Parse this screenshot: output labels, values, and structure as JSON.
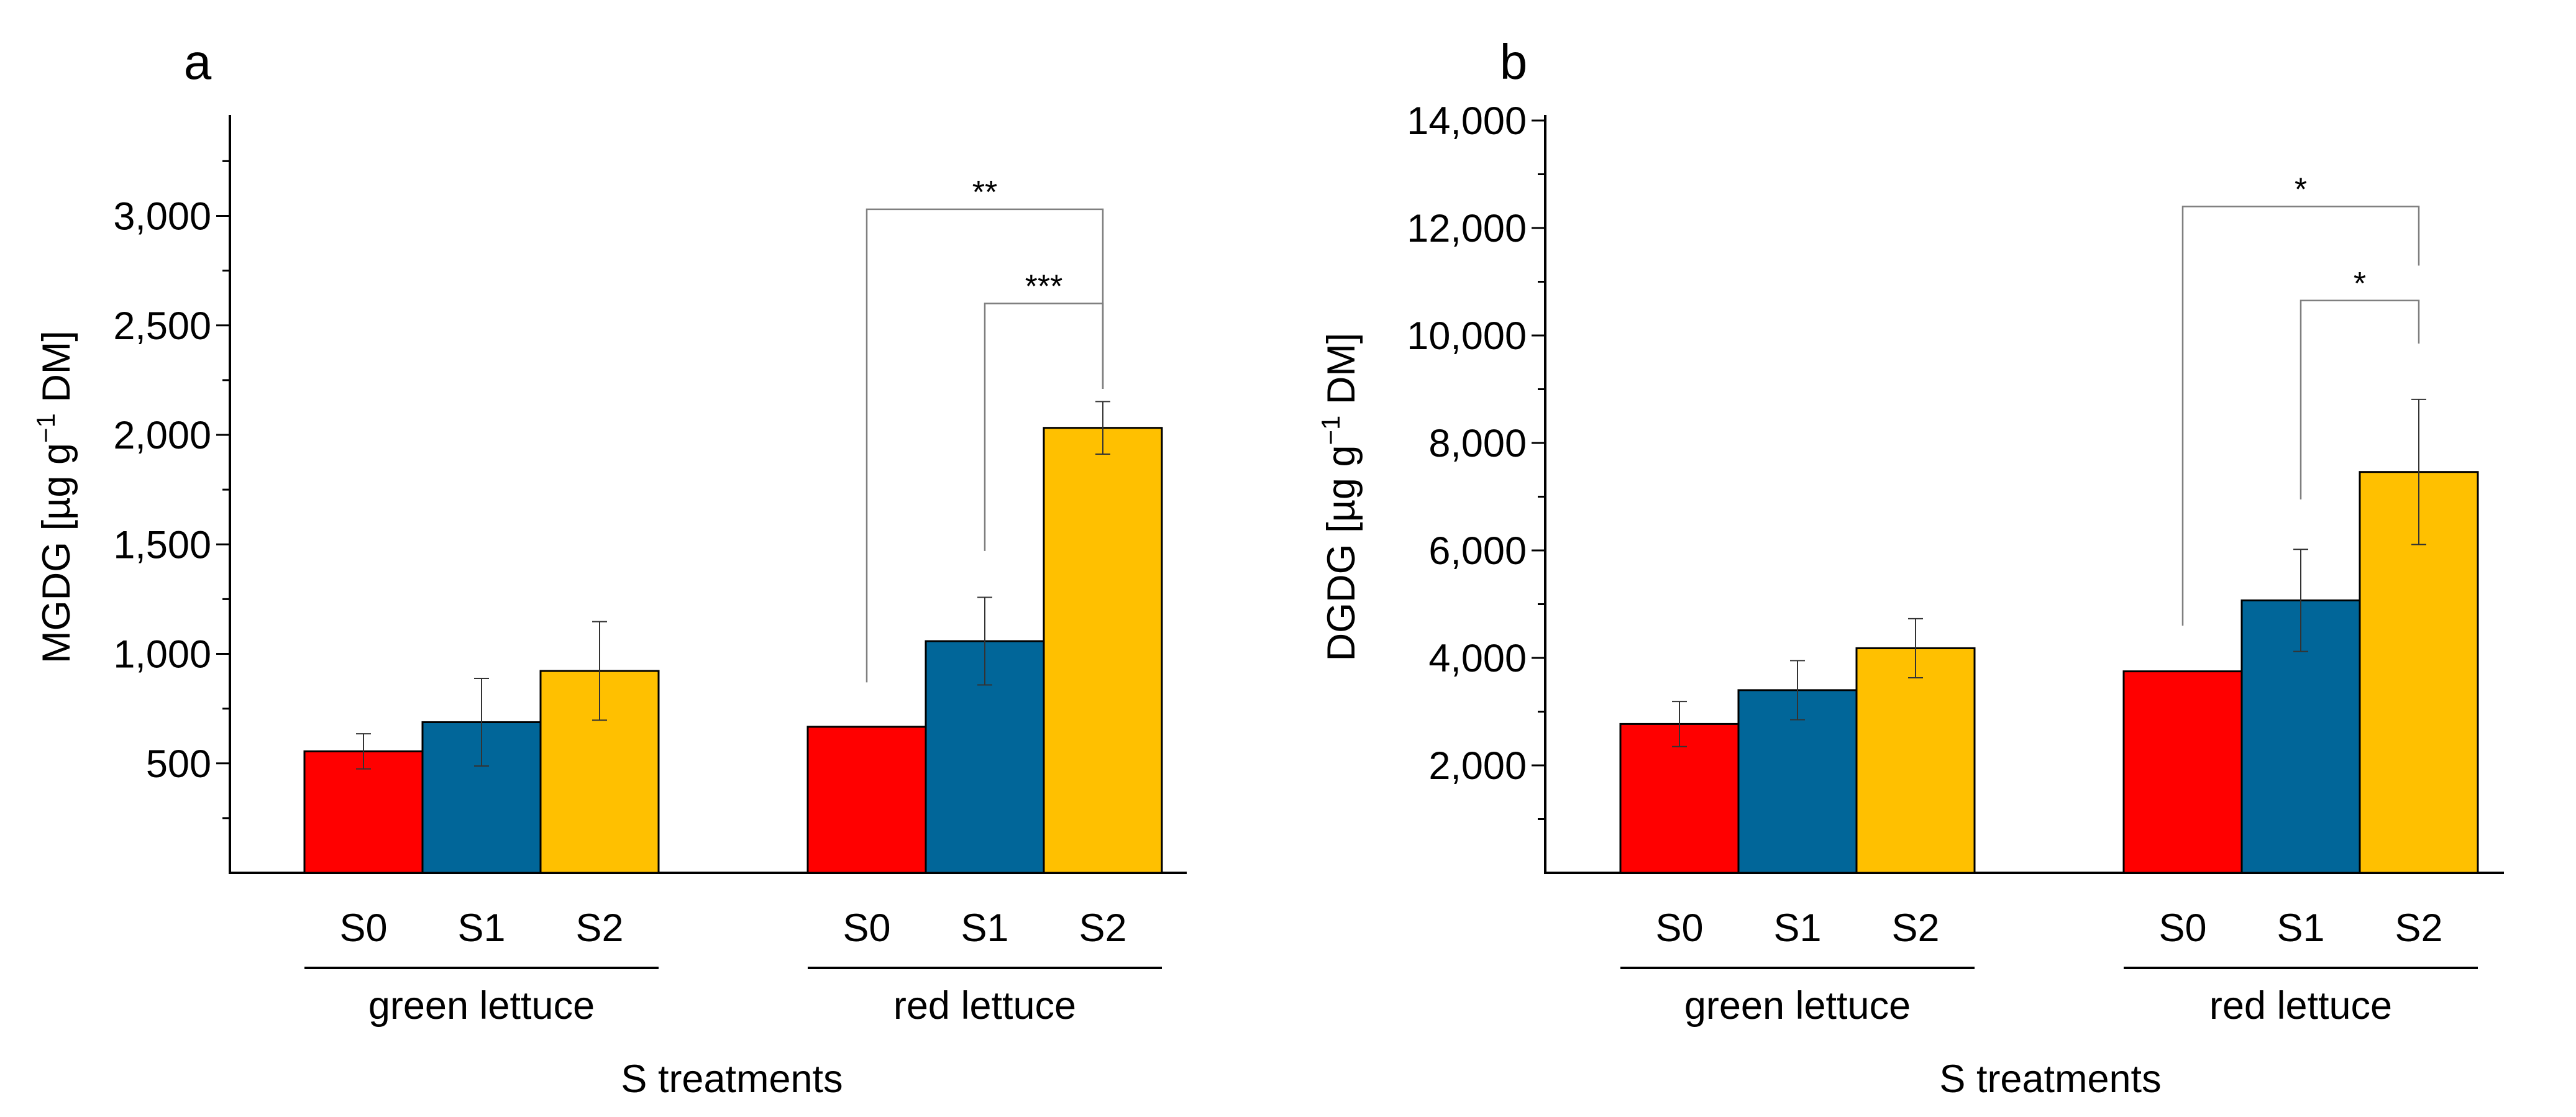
{
  "chart_data": [
    {
      "type": "bar",
      "panel_label": "a",
      "ylabel": "MGDG [µg g",
      "ylabel_sup": "−1",
      "ylabel_tail": " DM]",
      "xlabel": "S treatments",
      "ylim": [
        0,
        3400
      ],
      "yticks": [
        500,
        1000,
        1500,
        2000,
        2500,
        3000
      ],
      "ytick_labels": [
        "500",
        "1,000",
        "1,500",
        "2,000",
        "2,500",
        "3,000"
      ],
      "groups": [
        {
          "label": "green lettuce",
          "categories": [
            "S0",
            "S1",
            "S2"
          ],
          "values": [
            555,
            688,
            922
          ],
          "errors": [
            80,
            200,
            225
          ]
        },
        {
          "label": "red lettuce",
          "categories": [
            "S0",
            "S1",
            "S2"
          ],
          "values": [
            667,
            1058,
            2032
          ],
          "errors": [
            0,
            200,
            120
          ]
        }
      ],
      "significance": [
        {
          "group": 1,
          "from": 0,
          "to": 2,
          "label": "**",
          "y": 3030,
          "start_y": 870,
          "end_y": 2210
        },
        {
          "group": 1,
          "from": 1,
          "to": 2,
          "label": "***",
          "y": 2600,
          "start_y": 1470,
          "end_y": 2210
        }
      ]
    },
    {
      "type": "bar",
      "panel_label": "b",
      "ylabel": "DGDG [µg g",
      "ylabel_sup": "−1",
      "ylabel_tail": " DM]",
      "xlabel": "S treatments",
      "ylim": [
        0,
        14000
      ],
      "yticks": [
        2000,
        4000,
        6000,
        8000,
        10000,
        12000,
        14000
      ],
      "ytick_labels": [
        "2,000",
        "4,000",
        "6,000",
        "8,000",
        "10,000",
        "12,000",
        "14,000"
      ],
      "groups": [
        {
          "label": "green lettuce",
          "categories": [
            "S0",
            "S1",
            "S2"
          ],
          "values": [
            2770,
            3400,
            4180
          ],
          "errors": [
            420,
            550,
            550
          ]
        },
        {
          "label": "red lettuce",
          "categories": [
            "S0",
            "S1",
            "S2"
          ],
          "values": [
            3750,
            5070,
            7460
          ],
          "errors": [
            0,
            950,
            1350
          ]
        }
      ],
      "significance": [
        {
          "group": 1,
          "from": 0,
          "to": 2,
          "label": "*",
          "y": 12400,
          "start_y": 4600,
          "end_y": 11300
        },
        {
          "group": 1,
          "from": 1,
          "to": 2,
          "label": "*",
          "y": 10650,
          "start_y": 6950,
          "end_y": 9850
        }
      ]
    }
  ],
  "colors": {
    "S0": "#ff0000",
    "S1": "#016699",
    "S2": "#ffc000",
    "axis": "#000000",
    "bracket": "#7f7f7f",
    "errorbar": "#333333"
  }
}
